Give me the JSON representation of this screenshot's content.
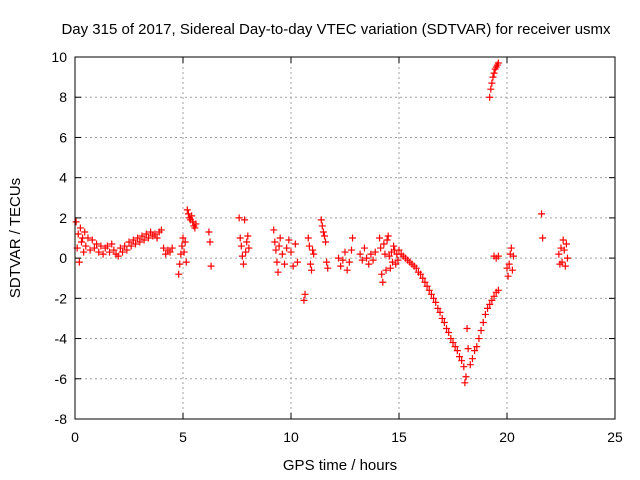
{
  "chart_data": {
    "type": "scatter",
    "title": "Day 315 of 2017, Sidereal Day-to-day VTEC variation (SDTVAR) for receiver usmx",
    "xlabel": "GPS time / hours",
    "ylabel": "SDTVAR / TECUs",
    "xlim": [
      0,
      25
    ],
    "ylim": [
      -8,
      10
    ],
    "xticks": [
      0,
      5,
      10,
      15,
      20,
      25
    ],
    "yticks": [
      -8,
      -6,
      -4,
      -2,
      0,
      2,
      4,
      6,
      8,
      10
    ],
    "grid": true,
    "marker": "+",
    "color": "#ff0000",
    "series": [
      {
        "name": "SDTVAR",
        "points": [
          [
            0.05,
            1.8
          ],
          [
            0.1,
            0.5
          ],
          [
            0.15,
            1.2
          ],
          [
            0.2,
            -0.2
          ],
          [
            0.25,
            1.5
          ],
          [
            0.3,
            0.8
          ],
          [
            0.35,
            1.0
          ],
          [
            0.4,
            0.3
          ],
          [
            0.45,
            1.3
          ],
          [
            0.5,
            0.6
          ],
          [
            0.6,
            1.0
          ],
          [
            0.7,
            0.4
          ],
          [
            0.8,
            0.9
          ],
          [
            0.9,
            0.5
          ],
          [
            1.0,
            0.7
          ],
          [
            1.1,
            0.3
          ],
          [
            1.2,
            0.6
          ],
          [
            1.3,
            0.2
          ],
          [
            1.4,
            0.5
          ],
          [
            1.5,
            0.6
          ],
          [
            1.6,
            0.3
          ],
          [
            1.7,
            0.7
          ],
          [
            1.8,
            0.4
          ],
          [
            1.9,
            0.2
          ],
          [
            2.0,
            0.1
          ],
          [
            2.1,
            0.5
          ],
          [
            2.2,
            0.3
          ],
          [
            2.3,
            0.6
          ],
          [
            2.4,
            0.4
          ],
          [
            2.5,
            0.8
          ],
          [
            2.6,
            0.6
          ],
          [
            2.7,
            0.9
          ],
          [
            2.8,
            0.7
          ],
          [
            2.9,
            1.0
          ],
          [
            3.0,
            0.8
          ],
          [
            3.1,
            1.1
          ],
          [
            3.2,
            0.9
          ],
          [
            3.3,
            1.2
          ],
          [
            3.4,
            1.0
          ],
          [
            3.5,
            1.3
          ],
          [
            3.6,
            1.1
          ],
          [
            3.7,
            1.2
          ],
          [
            3.8,
            1.0
          ],
          [
            3.9,
            1.3
          ],
          [
            4.0,
            1.4
          ],
          [
            4.1,
            0.5
          ],
          [
            4.2,
            0.2
          ],
          [
            4.3,
            0.4
          ],
          [
            4.4,
            0.3
          ],
          [
            4.5,
            0.5
          ],
          [
            4.8,
            -0.8
          ],
          [
            4.85,
            -0.3
          ],
          [
            4.9,
            0.2
          ],
          [
            4.95,
            0.6
          ],
          [
            5.0,
            1.0
          ],
          [
            5.05,
            0.3
          ],
          [
            5.1,
            0.8
          ],
          [
            5.15,
            -0.2
          ],
          [
            5.2,
            2.4
          ],
          [
            5.25,
            2.2
          ],
          [
            5.3,
            2.0
          ],
          [
            5.35,
            1.9
          ],
          [
            5.4,
            2.1
          ],
          [
            5.45,
            1.8
          ],
          [
            5.5,
            1.6
          ],
          [
            5.55,
            1.5
          ],
          [
            5.6,
            1.7
          ],
          [
            6.2,
            1.3
          ],
          [
            6.25,
            0.8
          ],
          [
            6.3,
            -0.4
          ],
          [
            7.6,
            2.0
          ],
          [
            7.65,
            1.0
          ],
          [
            7.7,
            0.6
          ],
          [
            7.75,
            0.1
          ],
          [
            7.8,
            -0.3
          ],
          [
            7.85,
            1.9
          ],
          [
            7.9,
            0.3
          ],
          [
            7.95,
            0.8
          ],
          [
            8.0,
            1.1
          ],
          [
            8.05,
            0.5
          ],
          [
            9.2,
            1.4
          ],
          [
            9.25,
            0.8
          ],
          [
            9.3,
            0.4
          ],
          [
            9.35,
            -0.2
          ],
          [
            9.4,
            -0.7
          ],
          [
            9.45,
            0.6
          ],
          [
            9.5,
            1.0
          ],
          [
            9.6,
            0.2
          ],
          [
            9.7,
            -0.3
          ],
          [
            9.8,
            0.5
          ],
          [
            9.9,
            0.9
          ],
          [
            10.0,
            0.3
          ],
          [
            10.1,
            -0.4
          ],
          [
            10.2,
            0.7
          ],
          [
            10.3,
            -0.2
          ],
          [
            10.6,
            -2.1
          ],
          [
            10.65,
            -1.8
          ],
          [
            10.8,
            1.0
          ],
          [
            10.85,
            0.6
          ],
          [
            10.9,
            -0.3
          ],
          [
            10.95,
            -0.6
          ],
          [
            11.0,
            0.4
          ],
          [
            11.05,
            0.2
          ],
          [
            11.4,
            1.9
          ],
          [
            11.45,
            1.6
          ],
          [
            11.5,
            1.3
          ],
          [
            11.55,
            1.1
          ],
          [
            11.6,
            0.8
          ],
          [
            11.65,
            -0.2
          ],
          [
            11.7,
            -0.5
          ],
          [
            12.2,
            0.0
          ],
          [
            12.3,
            -0.4
          ],
          [
            12.4,
            -0.1
          ],
          [
            12.5,
            0.3
          ],
          [
            12.6,
            -0.6
          ],
          [
            12.7,
            -0.2
          ],
          [
            12.8,
            0.4
          ],
          [
            12.85,
            1.0
          ],
          [
            13.2,
            0.2
          ],
          [
            13.3,
            -0.1
          ],
          [
            13.4,
            0.5
          ],
          [
            13.5,
            0.0
          ],
          [
            13.6,
            -0.3
          ],
          [
            13.7,
            0.2
          ],
          [
            13.8,
            -0.1
          ],
          [
            13.9,
            0.3
          ],
          [
            14.1,
            1.0
          ],
          [
            14.15,
            0.5
          ],
          [
            14.2,
            -0.8
          ],
          [
            14.25,
            -1.2
          ],
          [
            14.3,
            0.7
          ],
          [
            14.35,
            0.2
          ],
          [
            14.4,
            -0.6
          ],
          [
            14.45,
            0.9
          ],
          [
            14.5,
            1.1
          ],
          [
            14.55,
            0.1
          ],
          [
            14.6,
            -0.5
          ],
          [
            14.65,
            0.3
          ],
          [
            14.7,
            -0.2
          ],
          [
            14.75,
            0.6
          ],
          [
            14.8,
            0.4
          ],
          [
            14.85,
            -0.3
          ],
          [
            14.9,
            0.2
          ],
          [
            14.95,
            -0.1
          ],
          [
            15.0,
            0.4
          ],
          [
            15.1,
            0.2
          ],
          [
            15.2,
            0.1
          ],
          [
            15.3,
            0.0
          ],
          [
            15.4,
            -0.1
          ],
          [
            15.5,
            -0.2
          ],
          [
            15.6,
            -0.3
          ],
          [
            15.7,
            -0.4
          ],
          [
            15.8,
            -0.5
          ],
          [
            15.9,
            -0.7
          ],
          [
            16.0,
            -0.8
          ],
          [
            16.1,
            -1.0
          ],
          [
            16.2,
            -1.2
          ],
          [
            16.3,
            -1.4
          ],
          [
            16.4,
            -1.6
          ],
          [
            16.5,
            -1.8
          ],
          [
            16.6,
            -2.0
          ],
          [
            16.7,
            -2.2
          ],
          [
            16.8,
            -2.5
          ],
          [
            16.9,
            -2.7
          ],
          [
            17.0,
            -3.0
          ],
          [
            17.1,
            -3.2
          ],
          [
            17.2,
            -3.5
          ],
          [
            17.3,
            -3.7
          ],
          [
            17.4,
            -4.0
          ],
          [
            17.5,
            -4.2
          ],
          [
            17.6,
            -4.4
          ],
          [
            17.7,
            -4.6
          ],
          [
            17.8,
            -4.9
          ],
          [
            17.9,
            -5.1
          ],
          [
            18.0,
            -5.4
          ],
          [
            18.05,
            -6.2
          ],
          [
            18.1,
            -5.9
          ],
          [
            18.15,
            -3.5
          ],
          [
            18.2,
            -4.5
          ],
          [
            18.3,
            -5.3
          ],
          [
            18.4,
            -5.0
          ],
          [
            18.5,
            -4.6
          ],
          [
            18.6,
            -4.4
          ],
          [
            18.7,
            -4.0
          ],
          [
            18.8,
            -3.6
          ],
          [
            18.9,
            -3.2
          ],
          [
            19.0,
            -2.8
          ],
          [
            19.1,
            -2.5
          ],
          [
            19.2,
            -2.3
          ],
          [
            19.3,
            -2.1
          ],
          [
            19.4,
            -1.9
          ],
          [
            19.5,
            -1.7
          ],
          [
            19.6,
            -1.6
          ],
          [
            19.2,
            8.0
          ],
          [
            19.25,
            8.4
          ],
          [
            19.3,
            8.7
          ],
          [
            19.35,
            9.0
          ],
          [
            19.4,
            9.2
          ],
          [
            19.45,
            9.4
          ],
          [
            19.5,
            9.5
          ],
          [
            19.55,
            9.6
          ],
          [
            19.6,
            9.7
          ],
          [
            19.4,
            0.1
          ],
          [
            19.5,
            0.0
          ],
          [
            19.6,
            0.1
          ],
          [
            20.0,
            -0.5
          ],
          [
            20.05,
            -0.9
          ],
          [
            20.1,
            -0.3
          ],
          [
            20.15,
            0.2
          ],
          [
            20.2,
            0.5
          ],
          [
            20.25,
            -0.6
          ],
          [
            20.3,
            0.1
          ],
          [
            21.6,
            2.2
          ],
          [
            21.65,
            1.0
          ],
          [
            22.4,
            0.2
          ],
          [
            22.45,
            -0.3
          ],
          [
            22.5,
            0.5
          ],
          [
            22.55,
            -0.2
          ],
          [
            22.6,
            0.9
          ],
          [
            22.65,
            0.4
          ],
          [
            22.7,
            -0.4
          ],
          [
            22.75,
            0.7
          ],
          [
            22.8,
            0.0
          ]
        ]
      }
    ]
  }
}
